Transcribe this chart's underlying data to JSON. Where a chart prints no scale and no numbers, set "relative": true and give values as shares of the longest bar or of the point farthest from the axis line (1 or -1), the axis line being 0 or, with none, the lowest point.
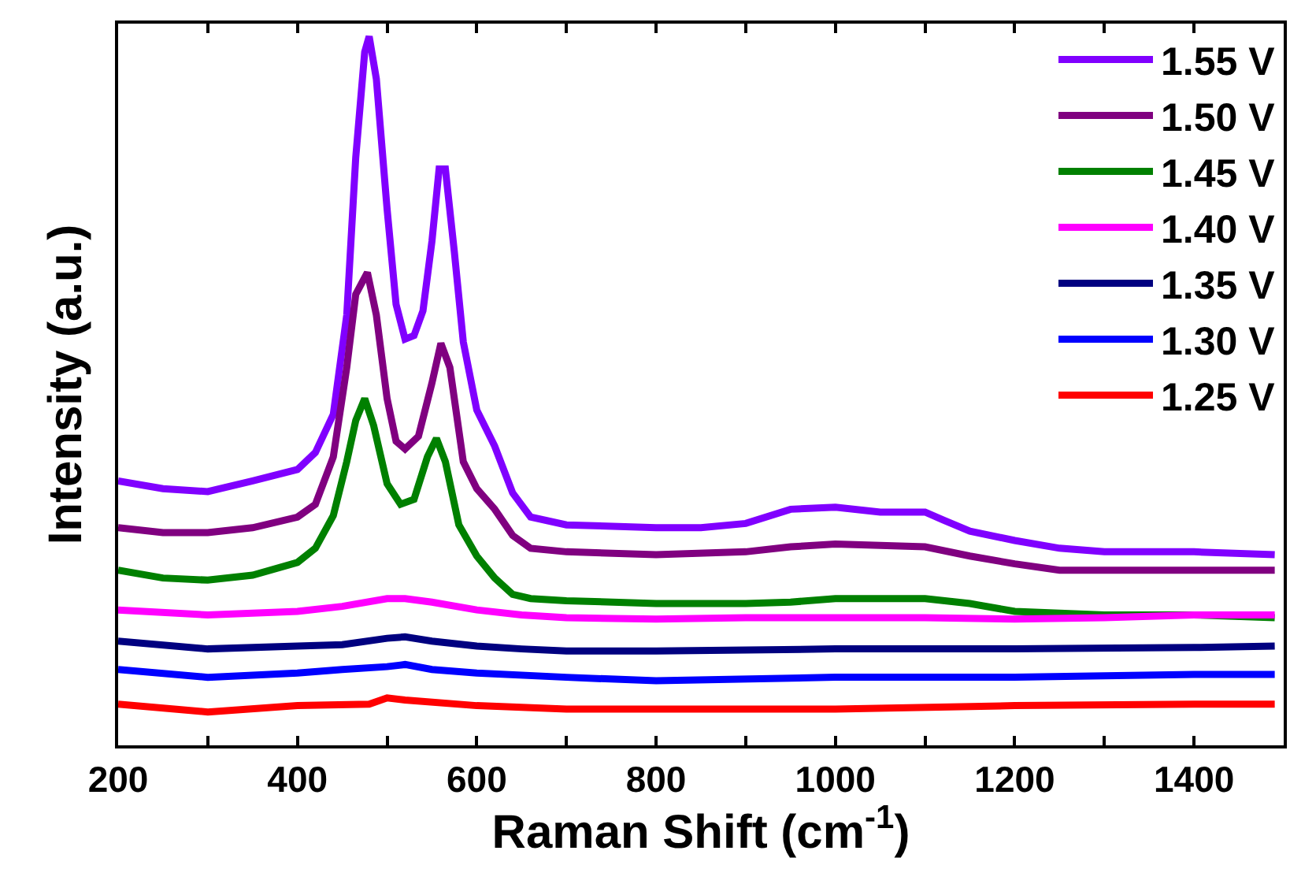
{
  "chart_data": {
    "type": "line",
    "relative": true,
    "xlabel": "Raman Shift (cm$^{-1}$)",
    "ylabel": "Intensity (a.u.)",
    "xlim": [
      200,
      1500
    ],
    "xticks": [
      200,
      {
        "value": 300,
        "label": null
      },
      400,
      {
        "value": 500,
        "label": null
      },
      600,
      {
        "value": 700,
        "label": null
      },
      800,
      {
        "value": 900,
        "label": null
      },
      1000,
      {
        "value": 1100,
        "label": null
      },
      1200,
      {
        "value": 1300,
        "label": null
      },
      1400
    ],
    "tick_labels": "x",
    "legend": "top right",
    "marker": "none",
    "line_style": "solid",
    "series": [
      {
        "name": "1.55 V",
        "color": "#8000ff",
        "x": [
          200,
          250,
          300,
          350,
          400,
          420,
          440,
          455,
          465,
          475,
          480,
          488,
          500,
          510,
          520,
          530,
          540,
          550,
          558,
          565,
          575,
          585,
          600,
          620,
          640,
          660,
          700,
          800,
          850,
          900,
          950,
          1000,
          1050,
          1100,
          1120,
          1150,
          1200,
          1250,
          1300,
          1400,
          1490
        ],
        "values": [
          0.373,
          0.362,
          0.358,
          0.373,
          0.389,
          0.413,
          0.467,
          0.607,
          0.829,
          0.978,
          1.0,
          0.94,
          0.756,
          0.622,
          0.573,
          0.578,
          0.613,
          0.711,
          0.813,
          0.813,
          0.696,
          0.569,
          0.473,
          0.422,
          0.356,
          0.322,
          0.311,
          0.307,
          0.307,
          0.313,
          0.333,
          0.336,
          0.329,
          0.329,
          0.318,
          0.302,
          0.289,
          0.278,
          0.273,
          0.273,
          0.269
        ]
      },
      {
        "name": "1.50 V",
        "color": "#800080",
        "x": [
          200,
          250,
          300,
          350,
          400,
          420,
          440,
          455,
          465,
          478,
          488,
          500,
          510,
          520,
          535,
          550,
          560,
          570,
          585,
          600,
          620,
          640,
          660,
          700,
          800,
          900,
          950,
          1000,
          1100,
          1150,
          1200,
          1250,
          1300,
          1400,
          1490
        ],
        "values": [
          0.307,
          0.3,
          0.3,
          0.307,
          0.322,
          0.34,
          0.407,
          0.533,
          0.636,
          0.667,
          0.607,
          0.489,
          0.429,
          0.418,
          0.436,
          0.511,
          0.567,
          0.533,
          0.4,
          0.362,
          0.333,
          0.296,
          0.278,
          0.273,
          0.269,
          0.273,
          0.28,
          0.284,
          0.28,
          0.267,
          0.256,
          0.247,
          0.247,
          0.247,
          0.247
        ]
      },
      {
        "name": "1.45 V",
        "color": "#008000",
        "x": [
          200,
          250,
          300,
          350,
          400,
          420,
          440,
          455,
          465,
          475,
          485,
          500,
          515,
          530,
          545,
          555,
          565,
          580,
          600,
          620,
          640,
          660,
          700,
          800,
          900,
          950,
          1000,
          1100,
          1150,
          1200,
          1300,
          1400,
          1490
        ],
        "values": [
          0.247,
          0.236,
          0.233,
          0.24,
          0.258,
          0.278,
          0.324,
          0.4,
          0.458,
          0.489,
          0.451,
          0.369,
          0.34,
          0.347,
          0.407,
          0.433,
          0.4,
          0.311,
          0.267,
          0.236,
          0.213,
          0.207,
          0.204,
          0.2,
          0.2,
          0.202,
          0.207,
          0.207,
          0.2,
          0.189,
          0.184,
          0.184,
          0.18
        ]
      },
      {
        "name": "1.40 V",
        "color": "#ff00ff",
        "x": [
          200,
          300,
          400,
          450,
          500,
          520,
          550,
          600,
          650,
          700,
          800,
          900,
          1000,
          1100,
          1200,
          1300,
          1400,
          1490
        ],
        "values": [
          0.191,
          0.184,
          0.189,
          0.196,
          0.207,
          0.207,
          0.202,
          0.191,
          0.184,
          0.18,
          0.178,
          0.18,
          0.18,
          0.18,
          0.178,
          0.18,
          0.184,
          0.184
        ]
      },
      {
        "name": "1.35 V",
        "color": "#000080",
        "x": [
          200,
          300,
          400,
          450,
          500,
          520,
          550,
          600,
          650,
          700,
          800,
          1000,
          1200,
          1400,
          1490
        ],
        "values": [
          0.147,
          0.136,
          0.14,
          0.142,
          0.151,
          0.153,
          0.147,
          0.14,
          0.136,
          0.133,
          0.133,
          0.136,
          0.136,
          0.138,
          0.14
        ]
      },
      {
        "name": "1.30 V",
        "color": "#0000ff",
        "x": [
          200,
          300,
          400,
          450,
          500,
          520,
          550,
          600,
          700,
          800,
          1000,
          1200,
          1400,
          1490
        ],
        "values": [
          0.107,
          0.096,
          0.102,
          0.107,
          0.111,
          0.114,
          0.107,
          0.102,
          0.096,
          0.091,
          0.096,
          0.096,
          0.1,
          0.1
        ]
      },
      {
        "name": "1.25 V",
        "color": "#ff0000",
        "x": [
          200,
          300,
          400,
          480,
          500,
          520,
          600,
          700,
          800,
          1000,
          1200,
          1400,
          1490
        ],
        "values": [
          0.058,
          0.047,
          0.056,
          0.058,
          0.067,
          0.064,
          0.056,
          0.051,
          0.051,
          0.051,
          0.056,
          0.058,
          0.058
        ]
      }
    ]
  }
}
